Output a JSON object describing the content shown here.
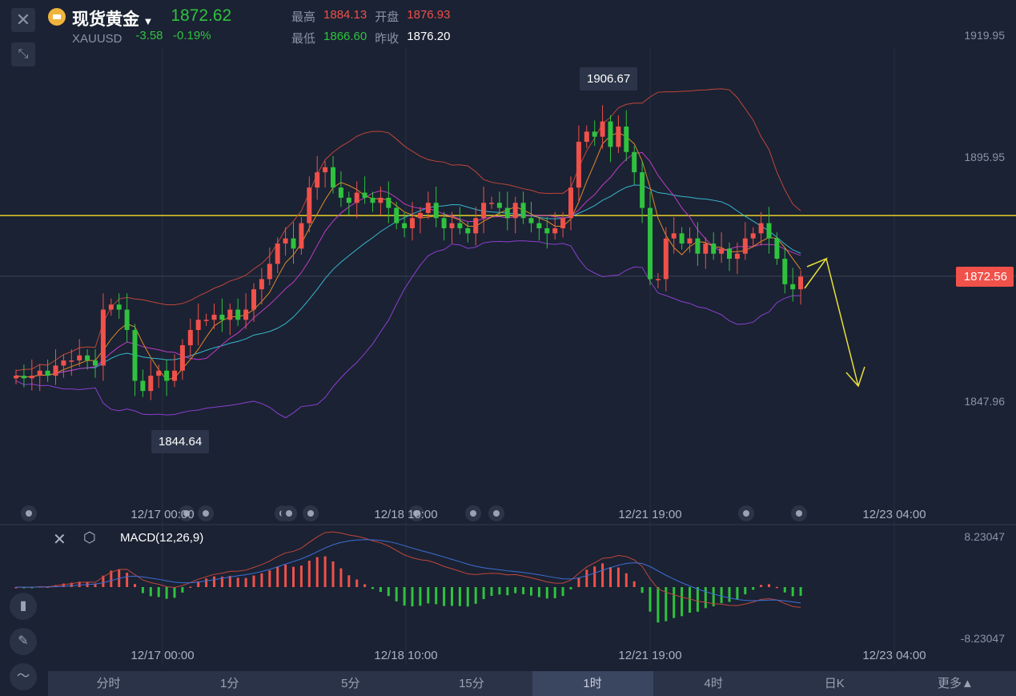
{
  "header": {
    "name": "现货黄金",
    "symbol": "XAUUSD",
    "price": "1872.62",
    "change": "-3.58",
    "change_pct": "-0.19%",
    "high_label": "最高",
    "high": "1884.13",
    "open_label": "开盘",
    "open": "1876.93",
    "low_label": "最低",
    "low": "1866.60",
    "prev_label": "昨收",
    "prev": "1876.20"
  },
  "price_axis": [
    "1919.95",
    "1895.95",
    "1847.96"
  ],
  "current_price_tag": "1872.56",
  "high_marker": "1906.67",
  "low_marker": "1844.64",
  "time_labels": [
    "12/17 00:00",
    "12/18 10:00",
    "12/21 19:00",
    "12/23 04:00"
  ],
  "macd": {
    "label": "MACD(12,26,9)",
    "max": "8.23047",
    "min": "-8.23047"
  },
  "tabs": [
    "分时",
    "1分",
    "5分",
    "15分",
    "1时",
    "4时",
    "日K",
    "更多▲"
  ],
  "active_tab": "1时",
  "colors": {
    "up": "#f0514a",
    "down": "#2fc23f",
    "bg": "#1b2233",
    "hline": "#e8d12b"
  },
  "support_line": 1884.5,
  "chart_data": {
    "type": "candlestick",
    "closes": [
      1853,
      1852.5,
      1853,
      1854,
      1853,
      1855,
      1856,
      1856,
      1857,
      1856,
      1855,
      1866,
      1867,
      1866,
      1862,
      1852,
      1850,
      1853,
      1854,
      1852,
      1854,
      1859,
      1862,
      1864,
      1864,
      1865,
      1864,
      1866,
      1864,
      1866,
      1870,
      1872,
      1875,
      1879,
      1880,
      1878,
      1883,
      1890,
      1893,
      1894,
      1890,
      1888,
      1887,
      1889,
      1888,
      1887,
      1888,
      1886,
      1883,
      1882,
      1884,
      1885,
      1887,
      1884,
      1882,
      1883,
      1882,
      1881,
      1884,
      1887,
      1887,
      1886,
      1884,
      1887,
      1884,
      1883,
      1882,
      1881,
      1882,
      1884,
      1890,
      1899,
      1901,
      1900,
      1903,
      1898,
      1902,
      1897,
      1893,
      1886,
      1872,
      1872,
      1880,
      1881,
      1879,
      1880,
      1877,
      1879,
      1877,
      1878,
      1876,
      1877,
      1880,
      1881,
      1883,
      1880,
      1876,
      1871,
      1870,
      1872.5
    ]
  }
}
